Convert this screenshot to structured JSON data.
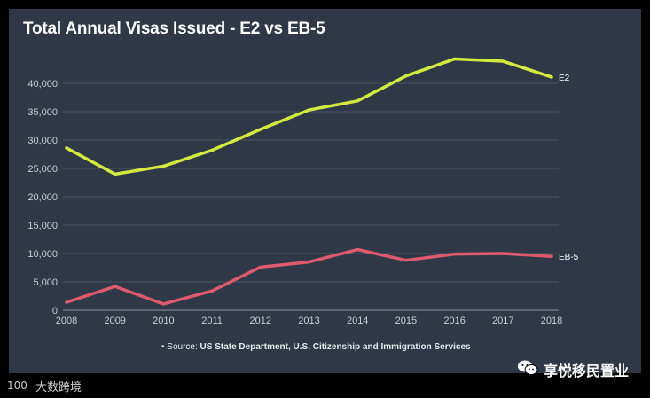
{
  "chart_data": {
    "type": "line",
    "title": "Total Annual Visas Issued - E2 vs EB-5",
    "xlabel": "",
    "ylabel": "",
    "x": [
      2008,
      2009,
      2010,
      2011,
      2012,
      2013,
      2014,
      2015,
      2016,
      2017,
      2018
    ],
    "ylim": [
      0,
      45000
    ],
    "yticks": [
      0,
      5000,
      10000,
      15000,
      20000,
      25000,
      30000,
      35000,
      40000
    ],
    "ytick_labels": [
      "0",
      "5,000",
      "10,000",
      "15,000",
      "20,000",
      "25,000",
      "30,000",
      "35,000",
      "40,000"
    ],
    "grid": true,
    "legend": "none (series labels at line ends)",
    "series": [
      {
        "name": "E2",
        "color": "#d4ea3c",
        "values": [
          28600,
          24000,
          25400,
          28200,
          31900,
          35300,
          36900,
          41300,
          44300,
          43900,
          41100
        ]
      },
      {
        "name": "EB-5",
        "color": "#e05a6e",
        "values": [
          1400,
          4200,
          1100,
          3400,
          7600,
          8500,
          10700,
          8800,
          9900,
          10000,
          9500
        ]
      }
    ]
  },
  "source": {
    "prefix": "• Source: ",
    "text": "US State Department, U.S. Citizenship and Immigration Services"
  },
  "watermark_right": {
    "icon": "wechat-icon",
    "text": "享悦移民置业"
  },
  "watermark_left": {
    "icon": "logo-icon",
    "text": "大数跨境"
  }
}
